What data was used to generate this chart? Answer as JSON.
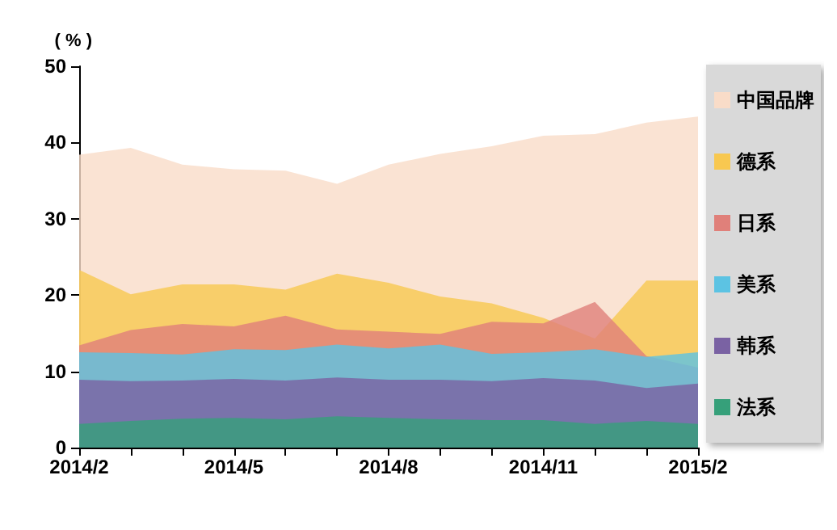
{
  "chart_data": {
    "type": "area",
    "ylabel": "( % )",
    "categories": [
      "2014/2",
      null,
      null,
      "2014/5",
      null,
      null,
      "2014/8",
      null,
      null,
      "2014/11",
      null,
      null,
      "2015/2"
    ],
    "series": [
      {
        "name": "中国品牌",
        "color": "#f9dcc8",
        "values": [
          38.4,
          39.3,
          37.1,
          36.5,
          36.3,
          34.6,
          37.1,
          38.5,
          39.5,
          40.9,
          41.1,
          42.6,
          43.4
        ]
      },
      {
        "name": "德系",
        "color": "#f8c850",
        "values": [
          23.3,
          20.1,
          21.4,
          21.4,
          20.7,
          22.8,
          21.6,
          19.8,
          18.9,
          17.0,
          14.3,
          21.9,
          21.9
        ]
      },
      {
        "name": "日系",
        "color": "#e0807a",
        "values": [
          13.4,
          15.4,
          16.2,
          15.9,
          17.3,
          15.5,
          15.2,
          14.9,
          16.5,
          16.3,
          19.1,
          12.0,
          10.5
        ]
      },
      {
        "name": "美系",
        "color": "#5cc3e3",
        "values": [
          12.5,
          12.4,
          12.2,
          12.9,
          12.8,
          13.5,
          13.0,
          13.5,
          12.3,
          12.5,
          12.9,
          11.9,
          12.5
        ]
      },
      {
        "name": "韩系",
        "color": "#7a62a3",
        "values": [
          8.9,
          8.7,
          8.8,
          9.0,
          8.8,
          9.2,
          8.9,
          8.9,
          8.7,
          9.1,
          8.8,
          7.8,
          8.4
        ]
      },
      {
        "name": "法系",
        "color": "#36a07a",
        "values": [
          3.1,
          3.5,
          3.8,
          3.9,
          3.7,
          4.1,
          3.9,
          3.7,
          3.6,
          3.6,
          3.1,
          3.5,
          3.1
        ]
      }
    ],
    "ylim": [
      0,
      50
    ],
    "yticks": [
      0,
      10,
      20,
      30,
      40,
      50
    ],
    "grid": false,
    "legend": "right"
  }
}
